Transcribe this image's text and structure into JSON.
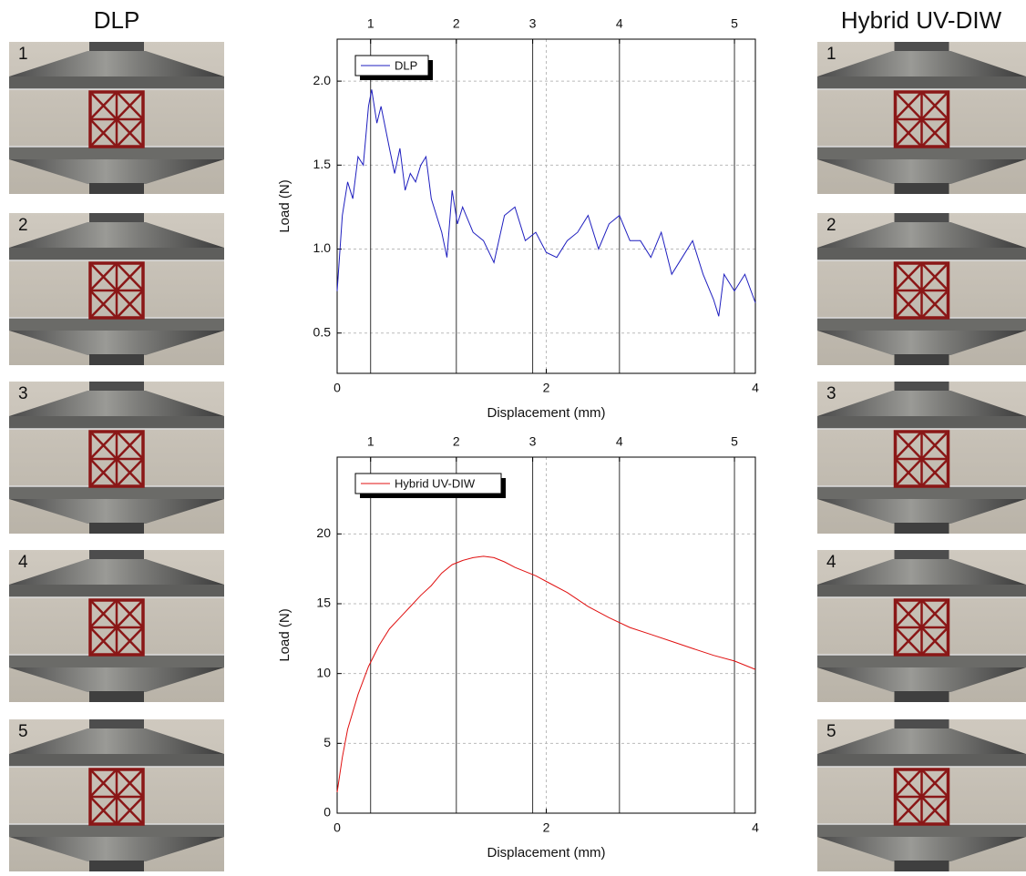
{
  "panels": {
    "left": {
      "title": "DLP",
      "labels": [
        "1",
        "2",
        "3",
        "4",
        "5"
      ]
    },
    "right": {
      "title": "Hybrid UV-DIW",
      "labels": [
        "1",
        "2",
        "3",
        "4",
        "5"
      ]
    }
  },
  "chart_data": [
    {
      "type": "line",
      "xlabel": "Displacement (mm)",
      "ylabel": "Load (N)",
      "x": [
        0,
        0.05,
        0.1,
        0.15,
        0.2,
        0.25,
        0.3,
        0.33,
        0.38,
        0.42,
        0.5,
        0.55,
        0.6,
        0.65,
        0.7,
        0.75,
        0.8,
        0.85,
        0.9,
        0.95,
        1.0,
        1.05,
        1.1,
        1.15,
        1.2,
        1.3,
        1.4,
        1.5,
        1.6,
        1.7,
        1.8,
        1.9,
        2.0,
        2.1,
        2.2,
        2.3,
        2.4,
        2.5,
        2.6,
        2.7,
        2.8,
        2.9,
        3.0,
        3.1,
        3.2,
        3.3,
        3.4,
        3.5,
        3.6,
        3.65,
        3.7,
        3.8,
        3.9,
        4.0
      ],
      "series": [
        {
          "name": "DLP",
          "color": "#1f1fbf",
          "values": [
            0.75,
            1.2,
            1.4,
            1.3,
            1.55,
            1.5,
            1.85,
            1.95,
            1.75,
            1.85,
            1.6,
            1.45,
            1.6,
            1.35,
            1.45,
            1.4,
            1.5,
            1.55,
            1.3,
            1.2,
            1.1,
            0.95,
            1.35,
            1.15,
            1.25,
            1.1,
            1.05,
            0.92,
            1.2,
            1.25,
            1.05,
            1.1,
            0.98,
            0.95,
            1.05,
            1.1,
            1.2,
            1.0,
            1.15,
            1.2,
            1.05,
            1.05,
            0.95,
            1.1,
            0.85,
            0.95,
            1.05,
            0.85,
            0.7,
            0.6,
            0.85,
            0.75,
            0.85,
            0.68
          ]
        }
      ],
      "xlim": [
        0,
        4
      ],
      "ylim": [
        0.26,
        2.25
      ],
      "xticks": [
        0,
        2,
        4
      ],
      "yticks": [
        {
          "value": 0.5,
          "label": "0.5"
        },
        {
          "value": 1.0,
          "label": "1.0"
        },
        {
          "value": 1.5,
          "label": "1.5"
        },
        {
          "value": 2.0,
          "label": "2.0"
        }
      ],
      "top_markers": [
        {
          "value": 0.32,
          "label": "1"
        },
        {
          "value": 1.14,
          "label": "2"
        },
        {
          "value": 1.87,
          "label": "3"
        },
        {
          "value": 2.7,
          "label": "4"
        },
        {
          "value": 3.8,
          "label": "5"
        }
      ],
      "grid": true,
      "legend": "upper left"
    },
    {
      "type": "line",
      "xlabel": "Displacement (mm)",
      "ylabel": "Load (N)",
      "x": [
        0,
        0.05,
        0.1,
        0.2,
        0.3,
        0.4,
        0.5,
        0.6,
        0.7,
        0.8,
        0.9,
        1.0,
        1.1,
        1.2,
        1.3,
        1.4,
        1.5,
        1.6,
        1.7,
        1.8,
        1.9,
        2.0,
        2.2,
        2.4,
        2.6,
        2.8,
        3.0,
        3.2,
        3.4,
        3.6,
        3.8,
        4.0
      ],
      "series": [
        {
          "name": "Hybrid UV-DIW",
          "color": "#e01010",
          "values": [
            1.5,
            4,
            6,
            8.5,
            10.5,
            12,
            13.2,
            14,
            14.8,
            15.6,
            16.3,
            17.2,
            17.8,
            18.1,
            18.3,
            18.4,
            18.3,
            18.0,
            17.6,
            17.3,
            17.0,
            16.6,
            15.8,
            14.8,
            14.0,
            13.3,
            12.8,
            12.3,
            11.8,
            11.3,
            10.9,
            10.3
          ]
        }
      ],
      "xlim": [
        0,
        4
      ],
      "ylim": [
        0,
        25.5
      ],
      "xticks": [
        0,
        2,
        4
      ],
      "yticks": [
        0,
        5,
        10,
        15,
        20
      ],
      "top_markers": [
        {
          "value": 0.32,
          "label": "1"
        },
        {
          "value": 1.14,
          "label": "2"
        },
        {
          "value": 1.87,
          "label": "3"
        },
        {
          "value": 2.7,
          "label": "4"
        },
        {
          "value": 3.8,
          "label": "5"
        }
      ],
      "grid": true,
      "legend": "upper left"
    }
  ]
}
